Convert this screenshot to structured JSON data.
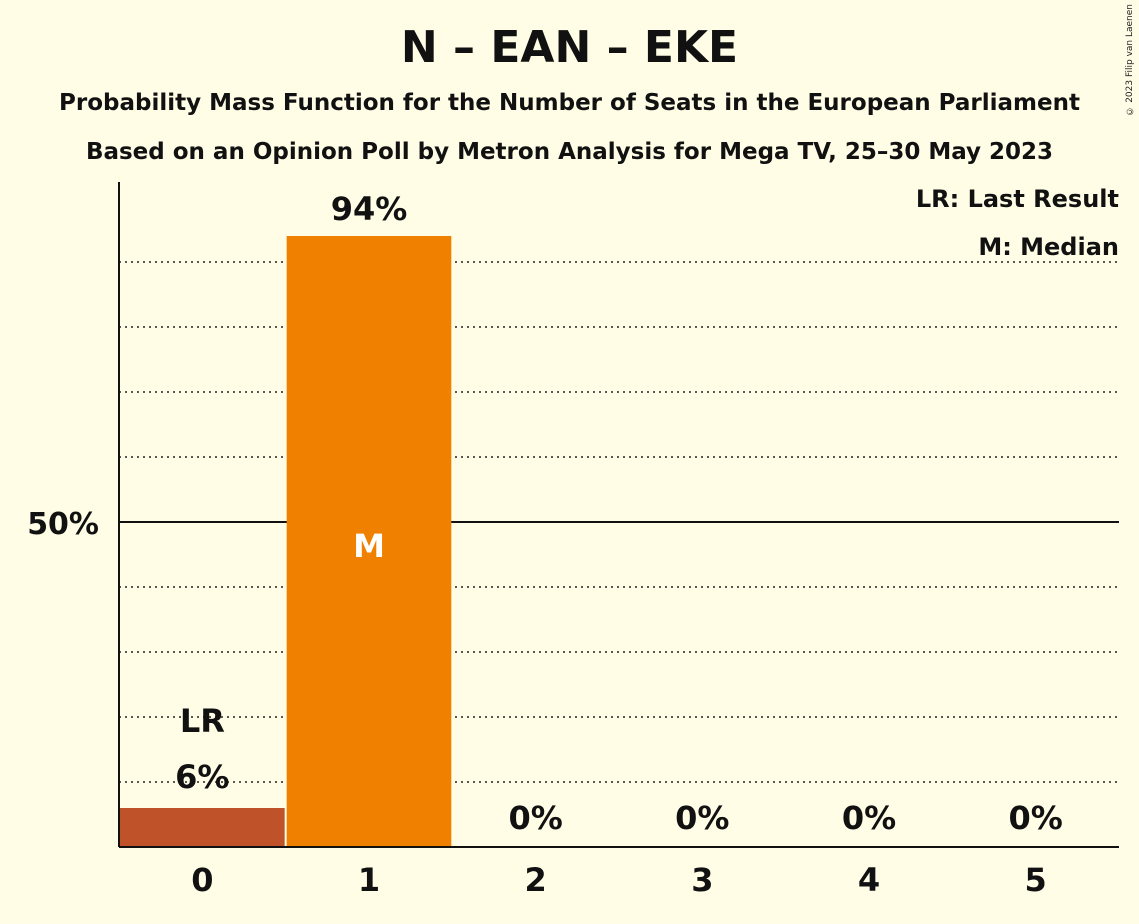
{
  "title": "N – EAN – EKE",
  "subtitle_1": "Probability Mass Function for the Number of Seats in the European Parliament",
  "subtitle_2": "Based on an Opinion Poll by Metron Analysis for Mega TV, 25–30 May 2023",
  "copyright": "© 2023 Filip van Laenen",
  "legend": {
    "last_result": "LR: Last Result",
    "median": "M: Median"
  },
  "chart_data": {
    "type": "bar",
    "title": "N – EAN – EKE",
    "categories": [
      "0",
      "1",
      "2",
      "3",
      "4",
      "5"
    ],
    "values": [
      6,
      94,
      0,
      0,
      0,
      0
    ],
    "value_labels": [
      "6%",
      "94%",
      "0%",
      "0%",
      "0%",
      "0%"
    ],
    "ylim": [
      0,
      100
    ],
    "y_tick_label": "50%",
    "y_tick_value": 50,
    "gridlines_dotted": [
      10,
      20,
      30,
      40,
      60,
      70,
      80,
      90
    ],
    "last_result_label": "LR",
    "last_result_category": "0",
    "median_label": "M",
    "median_category": "1",
    "colors": {
      "last_result_bar": "#C0522A",
      "median_bar": "#F08000",
      "background": "#FFFDE6"
    }
  }
}
